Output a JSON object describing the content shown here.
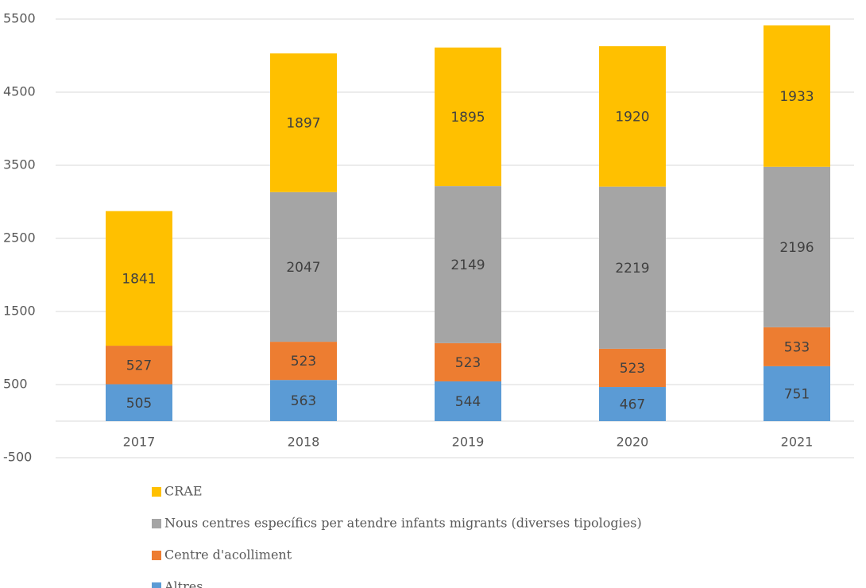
{
  "chart_data": {
    "type": "stacked-bar",
    "categories": [
      "2017",
      "2018",
      "2019",
      "2020",
      "2021"
    ],
    "series": [
      {
        "name": "CRAE",
        "color": "#ffc000",
        "values": [
          1841,
          1897,
          1895,
          1920,
          1933
        ]
      },
      {
        "name": "Nous centres específics per atendre infants migrants (diverses tipologies)",
        "color": "#a5a5a5",
        "values": [
          null,
          2047,
          2149,
          2219,
          2196
        ]
      },
      {
        "name": "Centre d'acolliment",
        "color": "#ed7d31",
        "values": [
          527,
          523,
          523,
          523,
          533
        ]
      },
      {
        "name": "Altres",
        "color": "#5b9bd5",
        "values": [
          505,
          563,
          544,
          467,
          751
        ]
      }
    ],
    "ylim": [
      -500,
      5500
    ],
    "yticks": [
      -500,
      500,
      1500,
      2500,
      3500,
      4500,
      5500
    ],
    "grid": true
  }
}
